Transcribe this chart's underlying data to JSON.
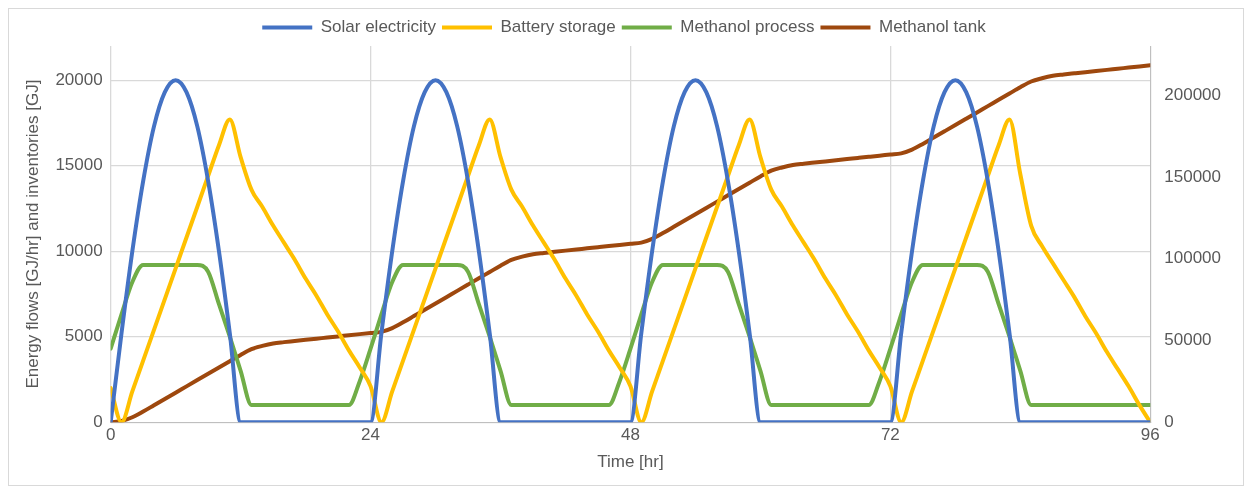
{
  "chart_data": {
    "type": "line",
    "xlabel": "Time [hr]",
    "ylabel": "Energy flows [GJ/hr] and inventories [GJ]",
    "x": [
      0,
      1,
      2,
      3,
      4,
      5,
      6,
      7,
      8,
      9,
      10,
      11,
      12,
      13,
      14,
      15,
      16,
      17,
      18,
      19,
      20,
      21,
      22,
      23,
      24,
      25,
      26,
      27,
      28,
      29,
      30,
      31,
      32,
      33,
      34,
      35,
      36,
      37,
      38,
      39,
      40,
      41,
      42,
      43,
      44,
      45,
      46,
      47,
      48,
      49,
      50,
      51,
      52,
      53,
      54,
      55,
      56,
      57,
      58,
      59,
      60,
      61,
      62,
      63,
      64,
      65,
      66,
      67,
      68,
      69,
      70,
      71,
      72,
      73,
      74,
      75,
      76,
      77,
      78,
      79,
      80,
      81,
      82,
      83,
      84,
      85,
      86,
      87,
      88,
      89,
      90,
      91,
      92,
      93,
      94,
      95,
      96
    ],
    "xlim": [
      0,
      96
    ],
    "xticks": [
      0,
      24,
      48,
      72,
      96
    ],
    "ylim": [
      0,
      22000
    ],
    "yticks": [
      0,
      5000,
      10000,
      15000,
      20000
    ],
    "y2lim": [
      0,
      230000
    ],
    "y2ticks": [
      0,
      50000,
      100000,
      150000,
      200000
    ],
    "grid": true,
    "legend": "top",
    "series": [
      {
        "name": "Solar electricity",
        "color": "#4472c4",
        "values": [
          0,
          5200,
          10000,
          14100,
          17300,
          19300,
          20000,
          19300,
          17300,
          14100,
          10000,
          5200,
          0,
          0,
          0,
          0,
          0,
          0,
          0,
          0,
          0,
          0,
          0,
          0,
          0,
          5200,
          10000,
          14100,
          17300,
          19300,
          20000,
          19300,
          17300,
          14100,
          10000,
          5200,
          0,
          0,
          0,
          0,
          0,
          0,
          0,
          0,
          0,
          0,
          0,
          0,
          0,
          5200,
          10000,
          14100,
          17300,
          19300,
          20000,
          19300,
          17300,
          14100,
          10000,
          5200,
          0,
          0,
          0,
          0,
          0,
          0,
          0,
          0,
          0,
          0,
          0,
          0,
          0,
          5200,
          10000,
          14100,
          17300,
          19300,
          20000,
          19300,
          17300,
          14100,
          10000,
          5200,
          0,
          0,
          0,
          0,
          0,
          0,
          0,
          0,
          0,
          0,
          0,
          0,
          0
        ]
      },
      {
        "name": "Battery storage",
        "color": "#ffc000",
        "values": [
          2000,
          0,
          1800,
          3600,
          5400,
          7200,
          9000,
          10800,
          12600,
          14400,
          16200,
          17700,
          15500,
          13600,
          12600,
          11500,
          10500,
          9500,
          8400,
          7400,
          6300,
          5300,
          4200,
          3200,
          2100,
          0,
          1800,
          3600,
          5400,
          7200,
          9000,
          10800,
          12600,
          14400,
          16200,
          17700,
          15500,
          13600,
          12600,
          11500,
          10500,
          9500,
          8400,
          7400,
          6300,
          5300,
          4200,
          3200,
          2100,
          0,
          1800,
          3600,
          5400,
          7200,
          9000,
          10800,
          12600,
          14400,
          16200,
          17700,
          15500,
          13600,
          12600,
          11500,
          10500,
          9500,
          8400,
          7400,
          6300,
          5300,
          4200,
          3200,
          2100,
          0,
          1800,
          3600,
          5400,
          7200,
          9000,
          10800,
          12600,
          14400,
          16200,
          17700,
          14500,
          11500,
          10300,
          9300,
          8300,
          7300,
          6200,
          5200,
          4100,
          3100,
          2100,
          1000,
          0
        ]
      },
      {
        "name": "Methanol process",
        "color": "#70ad47",
        "values": [
          4300,
          6300,
          8200,
          9200,
          9200,
          9200,
          9200,
          9200,
          9200,
          8800,
          6900,
          5000,
          3000,
          1000,
          1000,
          1000,
          1000,
          1000,
          1000,
          1000,
          1000,
          1000,
          1000,
          2400,
          4300,
          6300,
          8200,
          9200,
          9200,
          9200,
          9200,
          9200,
          9200,
          8800,
          6900,
          5000,
          3000,
          1000,
          1000,
          1000,
          1000,
          1000,
          1000,
          1000,
          1000,
          1000,
          1000,
          2400,
          4300,
          6300,
          8200,
          9200,
          9200,
          9200,
          9200,
          9200,
          9200,
          8800,
          6900,
          5000,
          3000,
          1000,
          1000,
          1000,
          1000,
          1000,
          1000,
          1000,
          1000,
          1000,
          1000,
          2400,
          4300,
          6300,
          8200,
          9200,
          9200,
          9200,
          9200,
          9200,
          9200,
          8800,
          6900,
          5000,
          3000,
          1000,
          1000,
          1000,
          1000,
          1000,
          1000,
          1000,
          1000,
          1000,
          1000,
          1000,
          1000
        ]
      },
      {
        "name": "Methanol tank",
        "color": "#9e480e",
        "axis": "y2",
        "values": [
          0,
          700,
          3000,
          6500,
          10350,
          14200,
          18050,
          21900,
          25750,
          29600,
          33450,
          37300,
          41150,
          44650,
          46650,
          48150,
          48950,
          49650,
          50350,
          51050,
          51750,
          52450,
          53150,
          53850,
          54550,
          55250,
          57550,
          61050,
          64900,
          68750,
          72600,
          76450,
          80300,
          84150,
          88000,
          91850,
          95700,
          99200,
          101200,
          102700,
          103500,
          104200,
          104900,
          105600,
          106300,
          107000,
          107700,
          108400,
          109100,
          109800,
          112100,
          115600,
          119450,
          123300,
          127150,
          131000,
          134850,
          138700,
          142550,
          146400,
          150250,
          153750,
          155750,
          157250,
          158050,
          158750,
          159450,
          160150,
          160850,
          161550,
          162250,
          162950,
          163650,
          164350,
          166650,
          170150,
          174000,
          177850,
          181700,
          185550,
          189400,
          193250,
          197100,
          200950,
          204800,
          208300,
          210300,
          211800,
          212600,
          213300,
          214000,
          214700,
          215400,
          216100,
          216800,
          217500,
          218200
        ]
      }
    ]
  }
}
